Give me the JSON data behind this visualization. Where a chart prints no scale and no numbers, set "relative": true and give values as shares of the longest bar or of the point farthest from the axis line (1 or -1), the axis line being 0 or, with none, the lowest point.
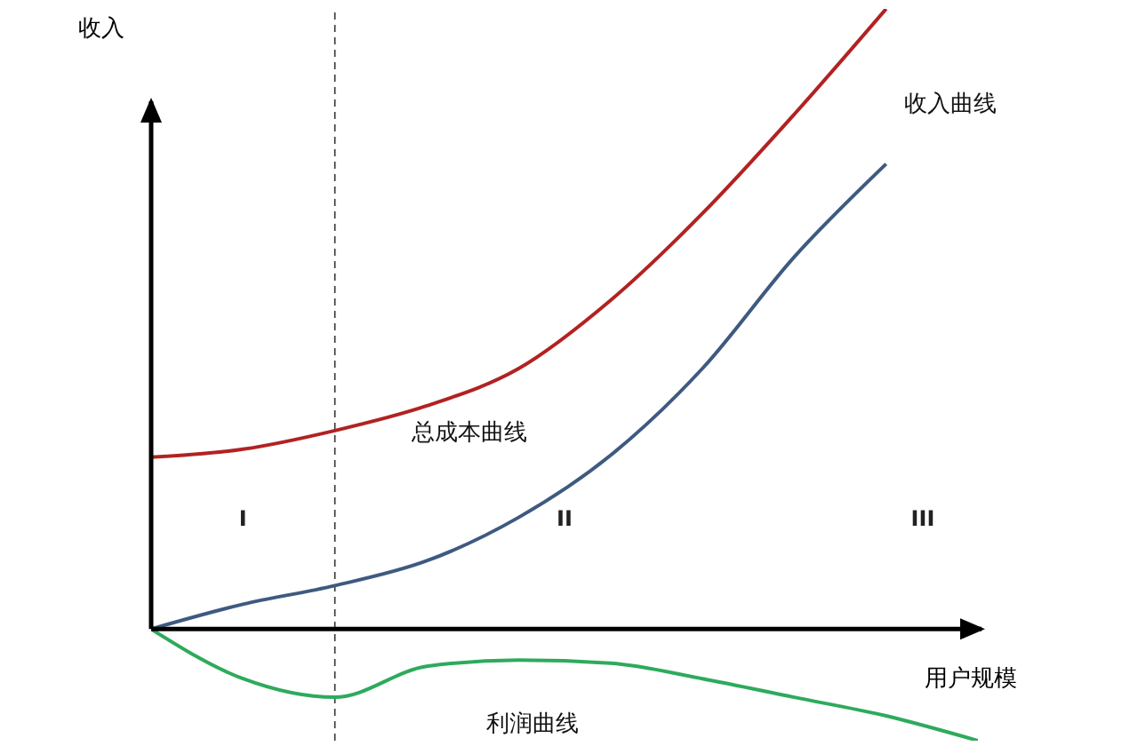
{
  "chart_data": {
    "type": "line",
    "relative": true,
    "xlabel": "用户规模",
    "ylabel": "收入",
    "categories": [
      null,
      null,
      null,
      null,
      null,
      null,
      null,
      null,
      null,
      null
    ],
    "tick_labels": false,
    "marker": "none",
    "line_style": "solid",
    "series": [
      {
        "name": "总成本曲线",
        "color": "#b22222",
        "values": [
          0.277,
          0.29,
          0.32,
          0.36,
          0.42,
          0.53,
          0.67,
          0.83,
          1.0,
          null
        ]
      },
      {
        "name": "收入曲线",
        "color": "#3e5a80",
        "values": [
          0,
          0.04,
          0.07,
          0.11,
          0.18,
          0.28,
          0.42,
          0.6,
          0.75,
          null
        ]
      },
      {
        "name": "利润曲线",
        "color": "#2eaa5c",
        "values": [
          0,
          -0.08,
          -0.11,
          -0.06,
          -0.05,
          -0.055,
          -0.08,
          -0.11,
          -0.14,
          -0.18
        ]
      }
    ],
    "annotations": [
      "I",
      "II",
      "III"
    ]
  }
}
